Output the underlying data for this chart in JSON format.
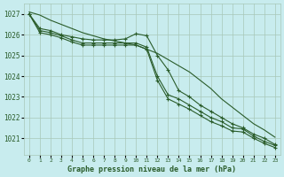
{
  "background_color": "#c8ecee",
  "grid_color": "#a8c8b8",
  "line_color": "#2a5c2a",
  "title": "Graphe pression niveau de la mer (hPa)",
  "xlim": [
    -0.5,
    23.5
  ],
  "ylim": [
    1020.2,
    1027.5
  ],
  "yticks": [
    1021,
    1022,
    1023,
    1024,
    1025,
    1026,
    1027
  ],
  "xticks": [
    0,
    1,
    2,
    3,
    4,
    5,
    6,
    7,
    8,
    9,
    10,
    11,
    12,
    13,
    14,
    15,
    16,
    17,
    18,
    19,
    20,
    21,
    22,
    23
  ],
  "series": [
    {
      "y": [
        1027.1,
        1026.95,
        1026.7,
        1026.5,
        1026.3,
        1026.1,
        1025.95,
        1025.8,
        1025.7,
        1025.6,
        1025.5,
        1025.3,
        1025.1,
        1024.8,
        1024.5,
        1024.2,
        1023.8,
        1023.4,
        1022.9,
        1022.5,
        1022.1,
        1021.7,
        1021.4,
        1021.05
      ],
      "marker": false
    },
    {
      "y": [
        1027.0,
        1026.3,
        1026.2,
        1026.0,
        1025.9,
        1025.8,
        1025.75,
        1025.75,
        1025.75,
        1025.8,
        1026.05,
        1025.95,
        1025.0,
        1024.3,
        1023.3,
        1023.0,
        1022.6,
        1022.3,
        1022.0,
        1021.7,
        1021.5,
        1021.2,
        1021.0,
        1020.7
      ],
      "marker": true
    },
    {
      "y": [
        1027.0,
        1026.2,
        1026.1,
        1025.95,
        1025.75,
        1025.6,
        1025.6,
        1025.6,
        1025.6,
        1025.6,
        1025.6,
        1025.4,
        1024.0,
        1023.1,
        1022.9,
        1022.6,
        1022.3,
        1022.0,
        1021.8,
        1021.5,
        1021.45,
        1021.1,
        1020.85,
        1020.65
      ],
      "marker": true
    },
    {
      "y": [
        1027.0,
        1026.1,
        1026.0,
        1025.85,
        1025.65,
        1025.5,
        1025.5,
        1025.5,
        1025.5,
        1025.5,
        1025.5,
        1025.3,
        1023.8,
        1022.9,
        1022.65,
        1022.4,
        1022.1,
        1021.8,
        1021.6,
        1021.35,
        1021.3,
        1021.0,
        1020.75,
        1020.55
      ],
      "marker": true
    }
  ]
}
